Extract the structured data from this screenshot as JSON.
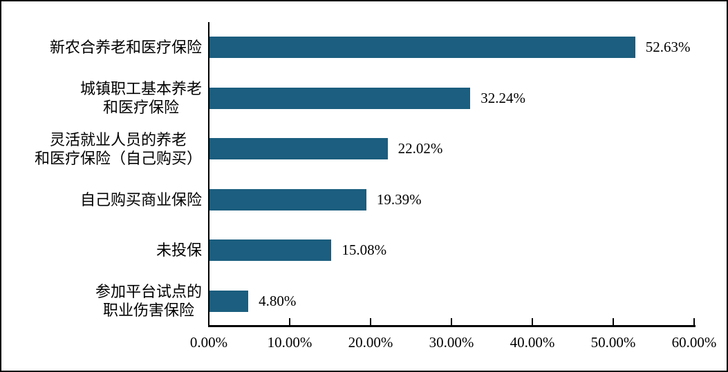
{
  "chart_data": {
    "type": "bar",
    "orientation": "horizontal",
    "title": "",
    "xlabel": "",
    "ylabel": "",
    "categories": [
      "新农合养老和医疗保险",
      "城镇职工基本养老\n和医疗保险",
      "灵活就业人员的养老\n和医疗保险（自己购买）",
      "自己购买商业保险",
      "未投保",
      "参加平台试点的\n职业伤害保险"
    ],
    "values": [
      52.63,
      32.24,
      22.02,
      19.39,
      15.08,
      4.8
    ],
    "value_labels": [
      "52.63%",
      "32.24%",
      "22.02%",
      "19.39%",
      "15.08%",
      "4.80%"
    ],
    "xlim": [
      0,
      60
    ],
    "x_tick_values": [
      0,
      10,
      20,
      30,
      40,
      50,
      60
    ],
    "x_tick_labels": [
      "0.00%",
      "10.00%",
      "20.00%",
      "30.00%",
      "40.00%",
      "50.00%",
      "60.00%"
    ],
    "grid": false,
    "legend": false,
    "colors": {
      "bar": "#1B5E7F",
      "axis": "#000000",
      "text": "#000000",
      "background": "#FFFFFF",
      "frame_border": "#000000"
    }
  }
}
